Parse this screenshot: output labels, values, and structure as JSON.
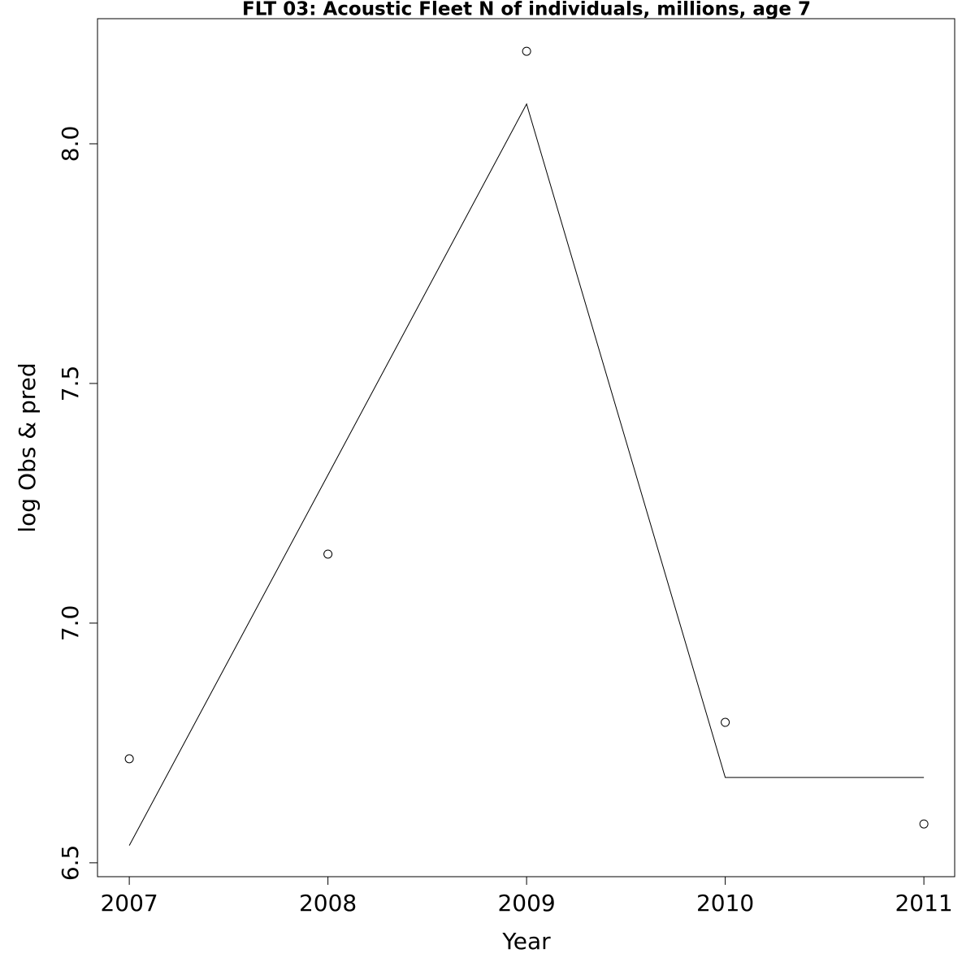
{
  "chart_data": {
    "type": "line",
    "title": "FLT 03: Acoustic Fleet  N of individuals, millions, age 7",
    "x_label": "Year",
    "y_label": "log Obs & pred",
    "x": [
      2007,
      2008,
      2009,
      2010,
      2011
    ],
    "series": [
      {
        "color": "#000000",
        "style": "points",
        "values": [
          6.717,
          7.144,
          8.193,
          6.793,
          6.581
        ]
      },
      {
        "color": "#000000",
        "style": "line",
        "values": [
          6.536,
          7.309,
          8.083,
          6.678,
          6.678
        ]
      }
    ],
    "xlim": [
      2006.84,
      2011.155
    ],
    "xticks": [
      2007,
      2008,
      2009,
      2010,
      2011
    ],
    "ylim": [
      6.471,
      8.261
    ],
    "yticks": [
      6.5,
      {
        "value": 7,
        "label": "7.0"
      },
      7.5,
      {
        "value": 8,
        "label": "8.0"
      }
    ],
    "grid": false
  }
}
